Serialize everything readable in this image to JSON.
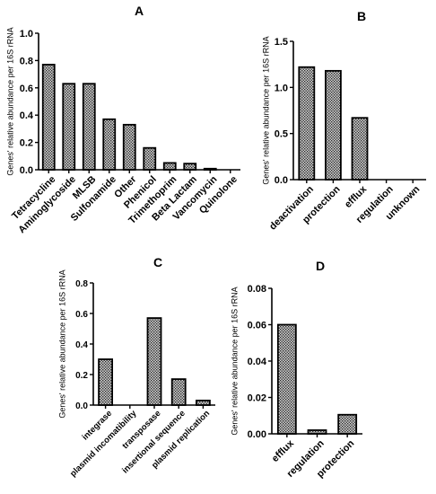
{
  "colors": {
    "bar_fill": "#d4d4d4",
    "bar_pattern_dot": "#2a2a2a",
    "axis": "#000000",
    "background": "#ffffff"
  },
  "chart_data": [
    {
      "id": "A",
      "type": "bar",
      "panel_label": "A",
      "ylabel": "Genes' relative abundance per 16S rRNA",
      "xlabel": "",
      "ylim": [
        0,
        1.0
      ],
      "yticks": [
        "0.0",
        "0.2",
        "0.4",
        "0.6",
        "0.8",
        "1.0"
      ],
      "categories": [
        "Tetracycline",
        "Aminoglycoside",
        "MLSB",
        "Sulfonamide",
        "Other",
        "Phenicol",
        "Trimethoprim",
        "Beta Lactam",
        "Vancomycin",
        "Quinolone"
      ],
      "values": [
        0.77,
        0.63,
        0.63,
        0.37,
        0.33,
        0.16,
        0.05,
        0.045,
        0.008,
        0.0
      ],
      "grid": false
    },
    {
      "id": "B",
      "type": "bar",
      "panel_label": "B",
      "ylabel": "Genes' relative abundance per 16S rRNA",
      "xlabel": "",
      "ylim": [
        0,
        1.5
      ],
      "yticks": [
        "0.0",
        "0.5",
        "1.0",
        "1.5"
      ],
      "categories": [
        "deactivation",
        "protection",
        "efflux",
        "regulation",
        "unknown"
      ],
      "values": [
        1.22,
        1.18,
        0.67,
        0.0,
        0.0
      ],
      "grid": false
    },
    {
      "id": "C",
      "type": "bar",
      "panel_label": "C",
      "ylabel": "Genes' relative abundance per 16S rRNA",
      "xlabel": "",
      "ylim": [
        0,
        0.8
      ],
      "yticks": [
        "0.0",
        "0.2",
        "0.4",
        "0.6",
        "0.8"
      ],
      "categories": [
        "integrase",
        "plasmid incomatibility",
        "transposase",
        "insertional sequence",
        "plasmid replication"
      ],
      "values": [
        0.3,
        0.0,
        0.57,
        0.17,
        0.03
      ],
      "grid": false
    },
    {
      "id": "D",
      "type": "bar",
      "panel_label": "D",
      "ylabel": "Genes' relative abundance per 16S rRNA",
      "xlabel": "",
      "ylim": [
        0,
        0.08
      ],
      "yticks": [
        "0.00",
        "0.02",
        "0.04",
        "0.06",
        "0.08"
      ],
      "categories": [
        "efflux",
        "regulation",
        "protection"
      ],
      "values": [
        0.06,
        0.002,
        0.0105
      ],
      "grid": false
    }
  ]
}
